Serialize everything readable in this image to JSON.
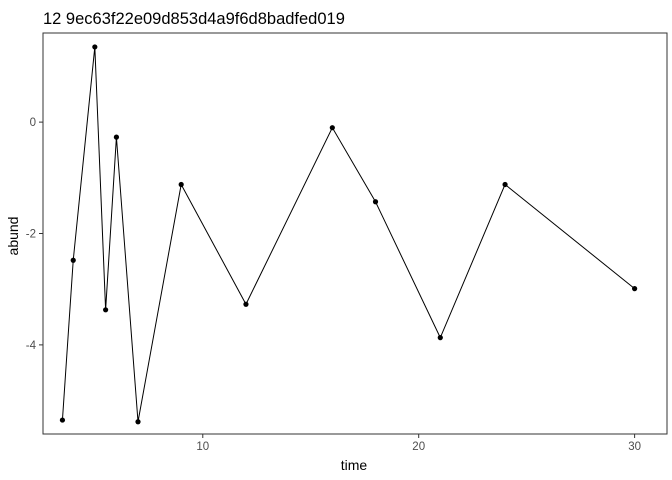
{
  "chart_data": {
    "type": "line",
    "title": "12 9ec63f22e09d853d4a9f6d8badfed019",
    "xlabel": "time",
    "ylabel": "abund",
    "xlim": [
      2.6,
      31.5
    ],
    "ylim": [
      -5.6,
      1.6
    ],
    "xticks": [
      10,
      20,
      30
    ],
    "yticks": [
      -4,
      -2,
      0
    ],
    "grid": false,
    "legend": "none",
    "colors": {
      "line": "#000000",
      "point": "#000000",
      "frame": "#333333",
      "tick_label": "#4d4d4d"
    },
    "series": [
      {
        "x": [
          3.5,
          4,
          5,
          5.5,
          6,
          7,
          9,
          12,
          16,
          18,
          21,
          24,
          30
        ],
        "y": [
          -5.35,
          -2.48,
          1.35,
          -3.37,
          -0.27,
          -5.38,
          -1.12,
          -3.27,
          -0.1,
          -1.43,
          -3.87,
          -1.12,
          -2.99
        ]
      }
    ]
  }
}
